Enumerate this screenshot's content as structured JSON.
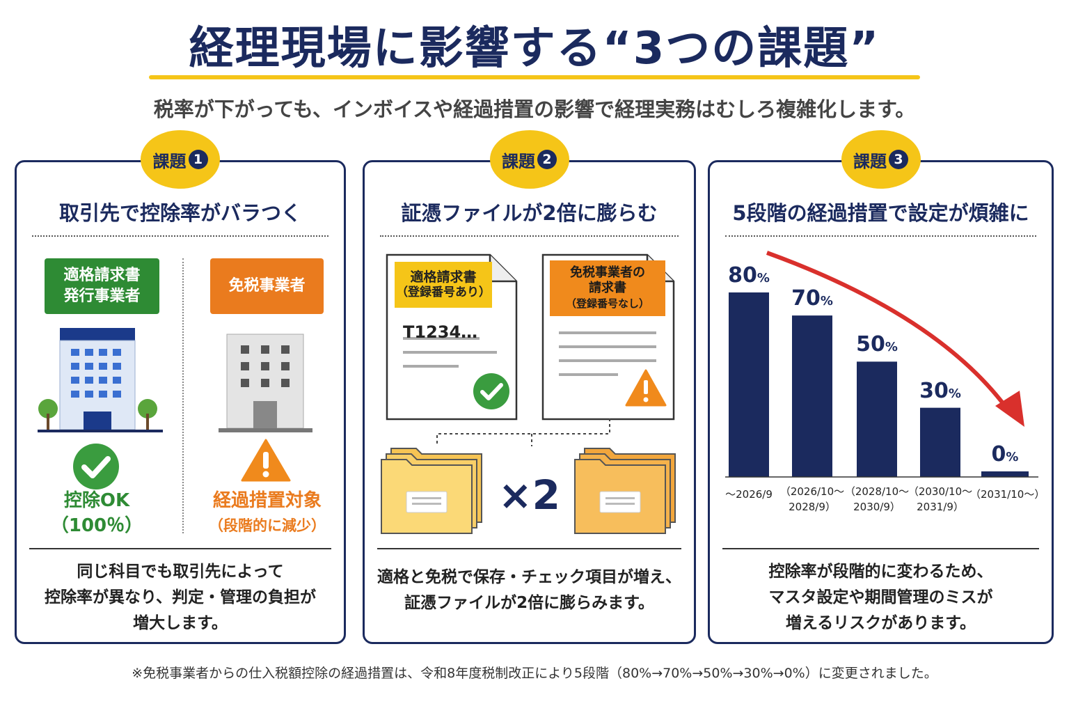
{
  "title": "経理現場に影響する“3つの課題”",
  "subtitle": "税率が下がっても、インボイスや経過措置の影響で経理実務はむしろ複雑化します。",
  "colors": {
    "navy": "#1b2a5e",
    "yellow": "#f5c518",
    "green": "#2e8b34",
    "orange": "#ea7b1e",
    "red": "#d9302c"
  },
  "panels": [
    {
      "badge": "課題",
      "badge_num": "1",
      "heading": "取引先で控除率がバラつく",
      "left_tag": [
        "適格請求書",
        "発行事業者"
      ],
      "right_tag": "免税事業者",
      "left_label": [
        "控除OK",
        "（100％）"
      ],
      "right_label": [
        "経過措置対象",
        "（段階的に減少）"
      ],
      "description": [
        "同じ科目でも取引先によって",
        "控除率が異なり、判定・管理の負担が",
        "増大します。"
      ]
    },
    {
      "badge": "課題",
      "badge_num": "2",
      "heading": "証憑ファイルが2倍に膨らむ",
      "doc1_title": [
        "適格請求書",
        "（登録番号あり）"
      ],
      "doc1_code": "T1234…",
      "doc2_title": [
        "免税事業者の",
        "請求書",
        "（登録番号なし）"
      ],
      "multiplier": "×2",
      "description": [
        "適格と免税で保存・チェック項目が増え、",
        "証憑ファイルが2倍に膨らみます。"
      ]
    },
    {
      "badge": "課題",
      "badge_num": "3",
      "heading": "5段階の経過措置で設定が煩雑に",
      "description": [
        "控除率が段階的に変わるため、",
        "マスタ設定や期間管理のミスが",
        "増えるリスクがあります。"
      ]
    }
  ],
  "chart_data": {
    "type": "bar",
    "categories": [
      [
        "～2026/9"
      ],
      [
        "（2026/10～",
        "2028/9）"
      ],
      [
        "（2028/10～",
        "2030/9）"
      ],
      [
        "（2030/10～",
        "2031/9）"
      ],
      [
        "（2031/10～）"
      ]
    ],
    "values": [
      80,
      70,
      50,
      30,
      0
    ],
    "value_labels": [
      "80",
      "70",
      "50",
      "30",
      "0"
    ],
    "unit": "%",
    "ylim": [
      0,
      100
    ]
  },
  "footnote": "※免税事業者からの仕入税額控除の経過措置は、令和8年度税制改正により5段階（80%→70%→50%→30%→0%）に変更されました。"
}
